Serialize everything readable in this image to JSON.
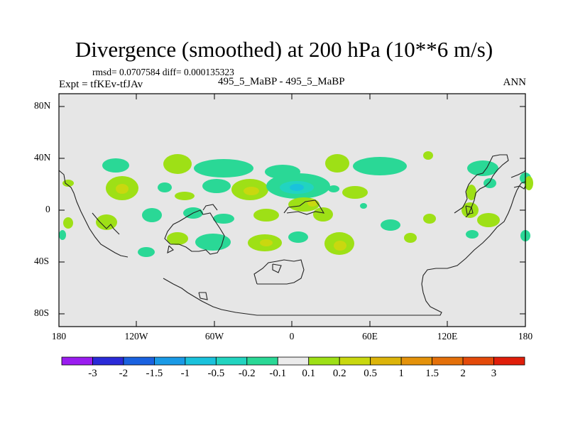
{
  "title": "Divergence (smoothed) at 200 hPa (10**6 m/s)",
  "stats_line": "rmsd= 0.0707584  diff= 0.000135323",
  "experiment": "Expt = tfKEv-tfJAv",
  "cases": "495_5_MaBP - 495_5_MaBP",
  "season": "ANN",
  "map": {
    "lat_labels": [
      "80N",
      "40N",
      "0",
      "40S",
      "80S"
    ],
    "lon_labels": [
      "180",
      "120W",
      "60W",
      "0",
      "60E",
      "120E",
      "180"
    ],
    "background_color": "#e6e6e6"
  },
  "colorbar": {
    "colors": [
      "#9a1cf0",
      "#2a2ad8",
      "#1a62e0",
      "#1a9ae6",
      "#1ac2dc",
      "#22d4c0",
      "#2ad896",
      "#ebebeb",
      "#9ee016",
      "#c9d80f",
      "#dcb40a",
      "#e4920a",
      "#e4700a",
      "#e44a0a",
      "#e01e0a"
    ],
    "labels": [
      "-3",
      "-2",
      "-1.5",
      "-1",
      "-0.5",
      "-0.2",
      "-0.1",
      "0.1",
      "0.2",
      "0.5",
      "1",
      "1.5",
      "2",
      "3"
    ]
  }
}
